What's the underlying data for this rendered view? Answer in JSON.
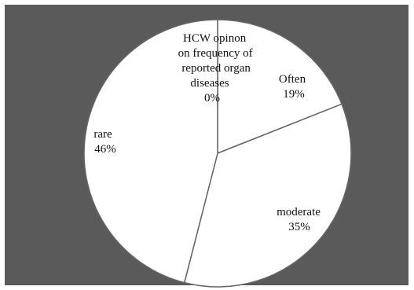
{
  "chart_data": {
    "type": "pie",
    "title": "HCW opinon on frequency of reported organ diseases",
    "slices": [
      {
        "label": "HCW opinon on frequency of reported organ diseases",
        "value": 0,
        "value_label": "0%"
      },
      {
        "label": "Often",
        "value": 19,
        "value_label": "19%"
      },
      {
        "label": "moderate",
        "value": 35,
        "value_label": "35%"
      },
      {
        "label": "rare",
        "value": 46,
        "value_label": "46%"
      }
    ],
    "start_angle_deg": 0,
    "direction": "clockwise",
    "legend": "none",
    "colors": {
      "background": "#5a5a5a",
      "slice_fill": "#ffffff",
      "slice_stroke": "#666666"
    }
  }
}
